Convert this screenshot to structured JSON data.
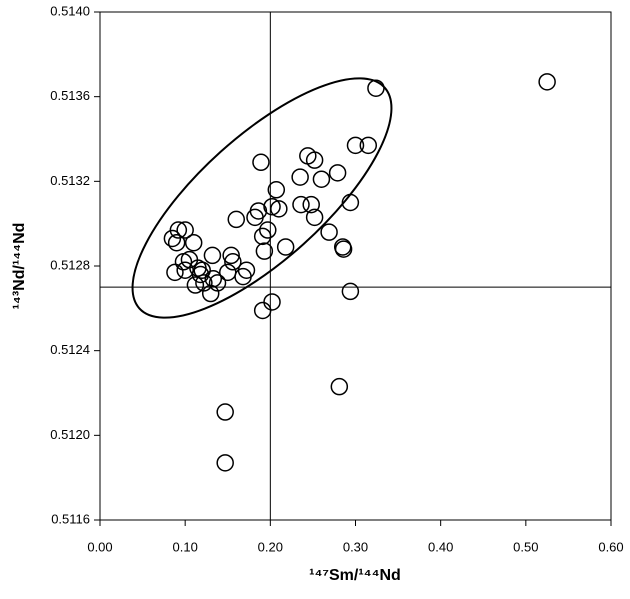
{
  "chart_data": {
    "type": "scatter",
    "x_label": "¹⁴⁷Sm/¹⁴⁴Nd",
    "y_label": "¹⁴³Nd/¹⁴⁴Nd",
    "xlim": [
      0,
      0.6
    ],
    "ylim": [
      0.5116,
      0.514
    ],
    "xticks": [
      {
        "value": 0,
        "label": "0.00"
      },
      {
        "value": 0.1,
        "label": "0.10"
      },
      {
        "value": 0.2,
        "label": "0.20"
      },
      {
        "value": 0.3,
        "label": "0.30"
      },
      {
        "value": 0.4,
        "label": "0.40"
      },
      {
        "value": 0.5,
        "label": "0.50"
      },
      {
        "value": 0.6,
        "label": "0.60"
      }
    ],
    "yticks": [
      0.5116,
      {
        "value": 0.512,
        "label": "0.5120"
      },
      0.5124,
      0.5128,
      0.5132,
      0.5136,
      {
        "value": 0.514,
        "label": "0.5140"
      }
    ],
    "reference_lines": {
      "x": 0.2,
      "y": 0.5127
    },
    "color": "#000000",
    "grid": false,
    "x": [
      0.525,
      0.324,
      0.3,
      0.315,
      0.244,
      0.252,
      0.189,
      0.279,
      0.235,
      0.26,
      0.207,
      0.294,
      0.236,
      0.248,
      0.202,
      0.21,
      0.186,
      0.252,
      0.182,
      0.16,
      0.269,
      0.197,
      0.191,
      0.218,
      0.193,
      0.285,
      0.286,
      0.154,
      0.156,
      0.085,
      0.092,
      0.1,
      0.09,
      0.11,
      0.132,
      0.098,
      0.105,
      0.088,
      0.1,
      0.115,
      0.12,
      0.118,
      0.172,
      0.168,
      0.15,
      0.112,
      0.122,
      0.133,
      0.138,
      0.13,
      0.294,
      0.202,
      0.191,
      0.281,
      0.147,
      0.147
    ],
    "values": [
      0.51367,
      0.51364,
      0.51337,
      0.51337,
      0.51332,
      0.5133,
      0.51329,
      0.51324,
      0.51322,
      0.51321,
      0.51316,
      0.5131,
      0.51309,
      0.51309,
      0.51308,
      0.51307,
      0.51306,
      0.51303,
      0.51303,
      0.51302,
      0.51296,
      0.51297,
      0.51294,
      0.51289,
      0.51287,
      0.51289,
      0.51288,
      0.51285,
      0.51282,
      0.51293,
      0.51297,
      0.51297,
      0.51291,
      0.51291,
      0.51285,
      0.51282,
      0.51283,
      0.51277,
      0.51278,
      0.51279,
      0.51278,
      0.51276,
      0.51278,
      0.51275,
      0.51277,
      0.51271,
      0.51272,
      0.51274,
      0.51272,
      0.51267,
      0.51268,
      0.51263,
      0.51259,
      0.51223,
      0.51211,
      0.51187
    ]
  }
}
